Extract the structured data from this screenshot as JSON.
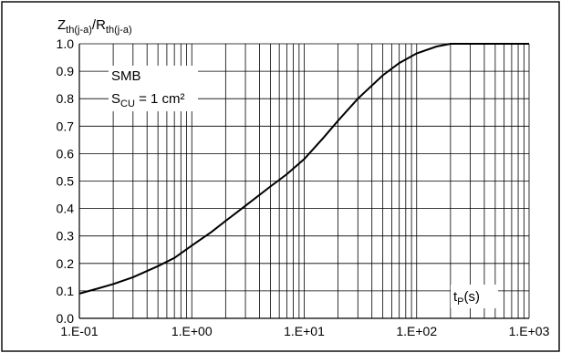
{
  "chart_data": {
    "type": "line",
    "ylabel": {
      "main1": "Z",
      "sub1": "th(j-a)",
      "sep": "/",
      "main2": "R",
      "sub2": "th(j-a)"
    },
    "xlabel": {
      "main": "t",
      "sub": "P",
      "unit": "(s)"
    },
    "annotation": {
      "line1": "SMB",
      "line2_main": "S",
      "line2_sub": "CU",
      "line2_rest": " = 1 cm²"
    },
    "x_scale": "log",
    "xlim": [
      0.1,
      1000
    ],
    "ylim": [
      0,
      1
    ],
    "x_ticks": [
      {
        "value": 0.1,
        "label": "1.E-01"
      },
      {
        "value": 1,
        "label": "1.E+00"
      },
      {
        "value": 10,
        "label": "1.E+01"
      },
      {
        "value": 100,
        "label": "1.E+02"
      },
      {
        "value": 1000,
        "label": "1.E+03"
      }
    ],
    "y_ticks": [
      {
        "value": 0.0,
        "label": "0.0"
      },
      {
        "value": 0.1,
        "label": "0.1"
      },
      {
        "value": 0.2,
        "label": "0.2"
      },
      {
        "value": 0.3,
        "label": "0.3"
      },
      {
        "value": 0.4,
        "label": "0.4"
      },
      {
        "value": 0.5,
        "label": "0.5"
      },
      {
        "value": 0.6,
        "label": "0.6"
      },
      {
        "value": 0.7,
        "label": "0.7"
      },
      {
        "value": 0.8,
        "label": "0.8"
      },
      {
        "value": 0.9,
        "label": "0.9"
      },
      {
        "value": 1.0,
        "label": "1.0"
      }
    ],
    "grid": true,
    "series": [
      {
        "x": [
          0.1,
          0.15,
          0.2,
          0.3,
          0.5,
          0.7,
          1,
          1.5,
          2,
          3,
          5,
          7,
          10,
          15,
          20,
          30,
          50,
          70,
          100,
          150,
          200,
          300,
          500,
          1000
        ],
        "y": [
          0.09,
          0.11,
          0.125,
          0.15,
          0.19,
          0.22,
          0.265,
          0.315,
          0.355,
          0.41,
          0.48,
          0.525,
          0.58,
          0.66,
          0.72,
          0.8,
          0.885,
          0.93,
          0.965,
          0.99,
          1.0,
          1.0,
          1.0,
          1.0
        ]
      }
    ]
  }
}
